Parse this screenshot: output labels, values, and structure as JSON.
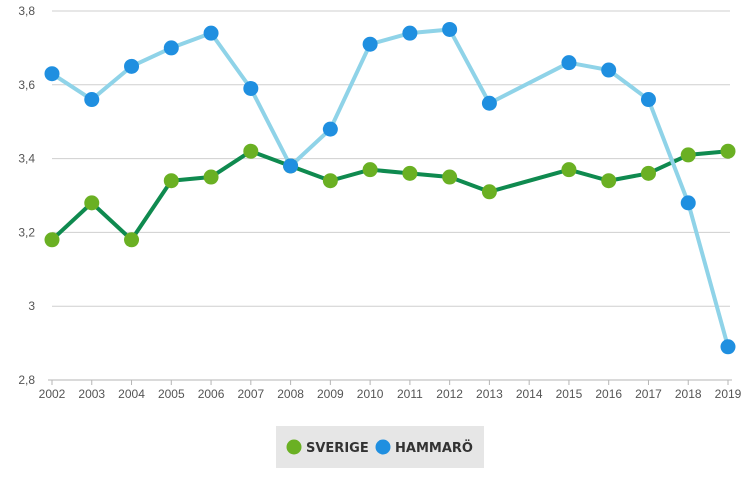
{
  "chart_data": {
    "type": "line",
    "x": [
      "2002",
      "2003",
      "2004",
      "2005",
      "2006",
      "2007",
      "2008",
      "2009",
      "2010",
      "2011",
      "2012",
      "2013",
      "2014",
      "2015",
      "2016",
      "2017",
      "2018",
      "2019"
    ],
    "ylim": [
      2.8,
      3.8
    ],
    "yticks": [
      2.8,
      3,
      3.2,
      3.4,
      3.6,
      3.8
    ],
    "ytick_labels": [
      "2,8",
      "3",
      "3,2",
      "3,4",
      "3,6",
      "3,8"
    ],
    "grid": true,
    "legend_position": "bottom-center",
    "series": [
      {
        "name": "SVERIGE",
        "line_color": "#0f8a4f",
        "marker_color": "#6ab023",
        "values": [
          3.18,
          3.28,
          3.18,
          3.34,
          3.35,
          3.42,
          3.38,
          3.34,
          3.37,
          3.36,
          3.35,
          3.31,
          null,
          3.37,
          3.34,
          3.36,
          3.41,
          3.42
        ]
      },
      {
        "name": "HAMMARÖ",
        "line_color": "#8fd3e8",
        "marker_color": "#1f8fe0",
        "values": [
          3.63,
          3.56,
          3.65,
          3.7,
          3.74,
          3.59,
          3.38,
          3.48,
          3.71,
          3.74,
          3.75,
          3.55,
          null,
          3.66,
          3.64,
          3.56,
          3.28,
          2.89
        ]
      }
    ]
  }
}
